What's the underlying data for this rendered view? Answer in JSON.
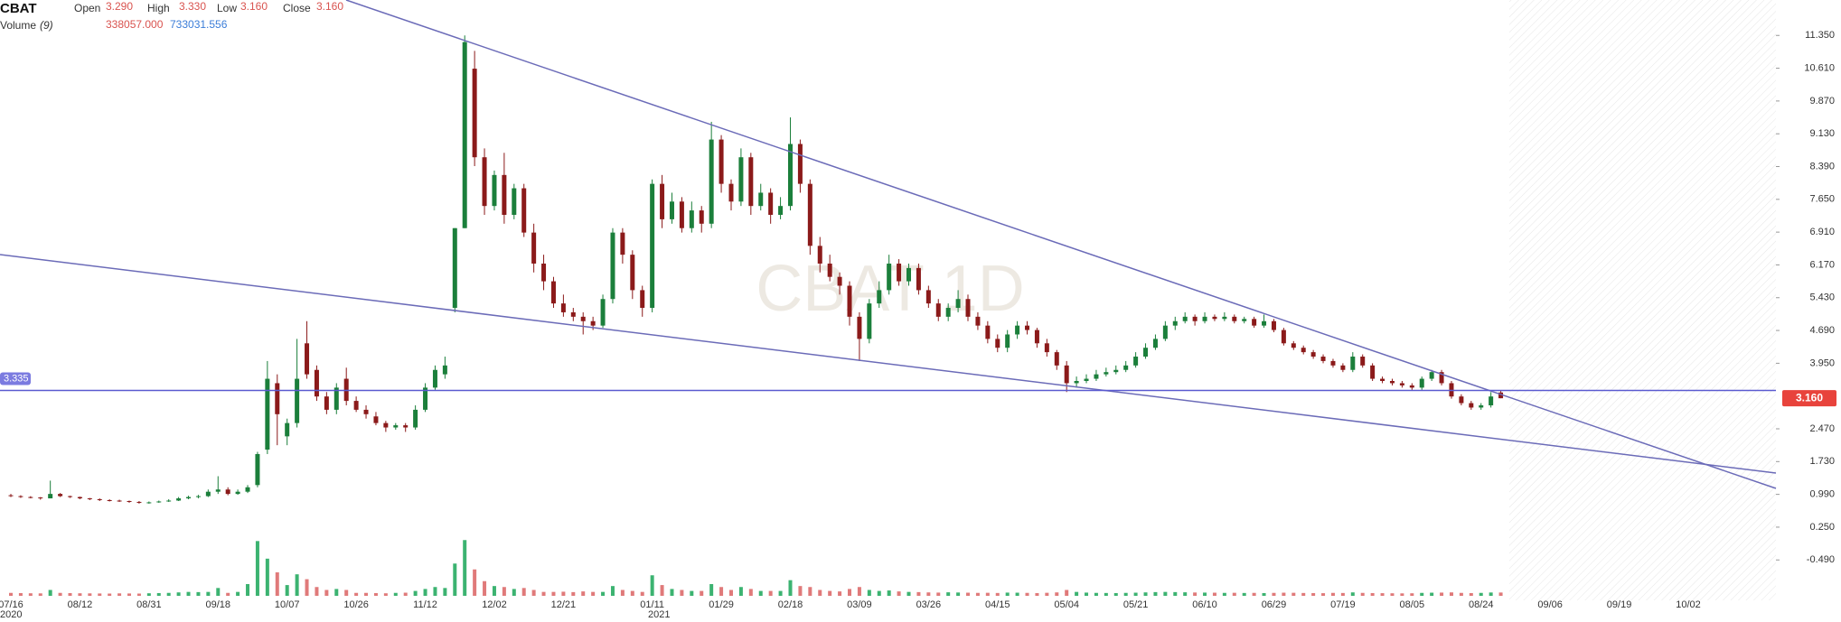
{
  "chart_data": {
    "type": "candlestick",
    "info": {
      "symbol": "CBAT",
      "fields": [
        {
          "name": "Open",
          "value": "3.290"
        },
        {
          "name": "High",
          "value": "3.330"
        },
        {
          "name": "Low",
          "value": "3.160"
        },
        {
          "name": "Close",
          "value": "3.160"
        }
      ],
      "volume_label": "Volume",
      "volume_period": "(9)",
      "volume_values": [
        "338057.000",
        "733031.556"
      ]
    },
    "watermark": "CBAT 1D",
    "years": [
      "2020",
      "2021"
    ],
    "categories": [
      "07/16",
      null,
      null,
      null,
      null,
      null,
      null,
      "08/12",
      null,
      null,
      null,
      null,
      null,
      null,
      "08/31",
      null,
      null,
      null,
      null,
      null,
      null,
      "09/18",
      null,
      null,
      null,
      null,
      null,
      null,
      "10/07",
      null,
      null,
      null,
      null,
      null,
      null,
      "10/26",
      null,
      null,
      null,
      null,
      null,
      null,
      "11/12",
      null,
      null,
      null,
      null,
      null,
      null,
      "12/02",
      null,
      null,
      null,
      null,
      null,
      null,
      "12/21",
      null,
      null,
      null,
      null,
      null,
      null,
      null,
      null,
      "01/11",
      null,
      null,
      null,
      null,
      null,
      null,
      "01/29",
      null,
      null,
      null,
      null,
      null,
      null,
      "02/18",
      null,
      null,
      null,
      null,
      null,
      null,
      "03/09",
      null,
      null,
      null,
      null,
      null,
      null,
      "03/26",
      null,
      null,
      null,
      null,
      null,
      null,
      "04/15",
      null,
      null,
      null,
      null,
      null,
      null,
      "05/04",
      null,
      null,
      null,
      null,
      null,
      null,
      "05/21",
      null,
      null,
      null,
      null,
      null,
      null,
      "06/10",
      null,
      null,
      null,
      null,
      null,
      null,
      "06/29",
      null,
      null,
      null,
      null,
      null,
      null,
      "07/19",
      null,
      null,
      null,
      null,
      null,
      null,
      "08/05",
      null,
      null,
      null,
      null,
      null,
      null,
      "08/24",
      null,
      null,
      null,
      null,
      null,
      null,
      "09/06",
      null,
      null,
      null,
      null,
      null,
      null,
      "09/19",
      null,
      null,
      null,
      null,
      null,
      null,
      "10/02"
    ],
    "ohlc": [
      [
        0.97,
        1.0,
        0.93,
        0.95
      ],
      [
        0.95,
        0.97,
        0.91,
        0.93
      ],
      [
        0.93,
        0.95,
        0.9,
        0.92
      ],
      [
        0.92,
        0.93,
        0.87,
        0.9
      ],
      [
        0.9,
        1.3,
        0.9,
        1.0
      ],
      [
        1.0,
        1.02,
        0.93,
        0.95
      ],
      [
        0.95,
        0.96,
        0.91,
        0.93
      ],
      [
        0.93,
        0.94,
        0.88,
        0.9
      ],
      [
        0.9,
        0.91,
        0.86,
        0.88
      ],
      [
        0.88,
        0.9,
        0.84,
        0.86
      ],
      [
        0.86,
        0.88,
        0.83,
        0.85
      ],
      [
        0.85,
        0.87,
        0.82,
        0.84
      ],
      [
        0.84,
        0.85,
        0.8,
        0.82
      ],
      [
        0.82,
        0.84,
        0.78,
        0.8
      ],
      [
        0.8,
        0.83,
        0.78,
        0.81
      ],
      [
        0.81,
        0.85,
        0.8,
        0.83
      ],
      [
        0.83,
        0.88,
        0.82,
        0.85
      ],
      [
        0.85,
        0.93,
        0.84,
        0.9
      ],
      [
        0.9,
        0.96,
        0.88,
        0.93
      ],
      [
        0.93,
        0.98,
        0.9,
        0.95
      ],
      [
        0.95,
        1.1,
        0.93,
        1.05
      ],
      [
        1.05,
        1.4,
        1.0,
        1.1
      ],
      [
        1.1,
        1.15,
        0.97,
        1.0
      ],
      [
        1.0,
        1.1,
        0.98,
        1.05
      ],
      [
        1.05,
        1.2,
        1.02,
        1.15
      ],
      [
        1.2,
        1.95,
        1.15,
        1.9
      ],
      [
        2.0,
        4.0,
        1.9,
        3.6
      ],
      [
        3.5,
        3.7,
        2.1,
        2.8
      ],
      [
        2.3,
        2.7,
        2.1,
        2.6
      ],
      [
        2.6,
        4.5,
        2.5,
        3.6
      ],
      [
        4.4,
        4.9,
        3.6,
        3.7
      ],
      [
        3.8,
        3.9,
        3.1,
        3.2
      ],
      [
        3.2,
        3.3,
        2.8,
        2.9
      ],
      [
        2.9,
        3.5,
        2.8,
        3.4
      ],
      [
        3.6,
        3.85,
        3.0,
        3.1
      ],
      [
        3.1,
        3.2,
        2.85,
        2.9
      ],
      [
        2.9,
        3.0,
        2.7,
        2.8
      ],
      [
        2.75,
        2.85,
        2.55,
        2.6
      ],
      [
        2.6,
        2.65,
        2.4,
        2.5
      ],
      [
        2.5,
        2.6,
        2.45,
        2.55
      ],
      [
        2.55,
        2.6,
        2.4,
        2.5
      ],
      [
        2.5,
        3.0,
        2.45,
        2.9
      ],
      [
        2.9,
        3.5,
        2.85,
        3.4
      ],
      [
        3.4,
        3.9,
        3.35,
        3.8
      ],
      [
        3.7,
        4.1,
        3.6,
        3.9
      ],
      [
        5.2,
        7.0,
        5.1,
        7.0
      ],
      [
        7.0,
        11.35,
        7.0,
        11.2
      ],
      [
        10.6,
        11.0,
        8.4,
        8.6
      ],
      [
        8.6,
        8.8,
        7.3,
        7.5
      ],
      [
        7.5,
        8.3,
        7.4,
        8.2
      ],
      [
        8.2,
        8.7,
        7.1,
        7.3
      ],
      [
        7.3,
        8.0,
        7.2,
        7.9
      ],
      [
        7.9,
        8.0,
        6.8,
        6.9
      ],
      [
        6.9,
        7.1,
        6.0,
        6.2
      ],
      [
        6.2,
        6.4,
        5.6,
        5.8
      ],
      [
        5.8,
        5.9,
        5.2,
        5.3
      ],
      [
        5.3,
        5.5,
        5.0,
        5.1
      ],
      [
        5.1,
        5.2,
        4.9,
        5.0
      ],
      [
        5.0,
        5.1,
        4.6,
        4.9
      ],
      [
        4.9,
        5.0,
        4.7,
        4.8
      ],
      [
        4.8,
        5.5,
        4.75,
        5.4
      ],
      [
        5.4,
        7.0,
        5.3,
        6.9
      ],
      [
        6.9,
        7.0,
        6.2,
        6.4
      ],
      [
        6.4,
        6.5,
        5.4,
        5.6
      ],
      [
        5.6,
        5.7,
        5.0,
        5.2
      ],
      [
        5.2,
        8.1,
        5.1,
        8.0
      ],
      [
        8.0,
        8.2,
        7.0,
        7.2
      ],
      [
        7.2,
        7.8,
        7.1,
        7.6
      ],
      [
        7.6,
        7.7,
        6.9,
        7.0
      ],
      [
        7.0,
        7.6,
        6.9,
        7.4
      ],
      [
        7.4,
        7.5,
        6.9,
        7.1
      ],
      [
        7.1,
        9.4,
        7.0,
        9.0
      ],
      [
        9.0,
        9.1,
        7.8,
        8.0
      ],
      [
        8.0,
        8.1,
        7.4,
        7.6
      ],
      [
        7.6,
        8.8,
        7.5,
        8.6
      ],
      [
        8.6,
        8.7,
        7.3,
        7.5
      ],
      [
        7.5,
        8.0,
        7.4,
        7.8
      ],
      [
        7.8,
        7.9,
        7.1,
        7.3
      ],
      [
        7.3,
        7.7,
        7.2,
        7.5
      ],
      [
        7.5,
        9.5,
        7.4,
        8.9
      ],
      [
        8.9,
        9.0,
        7.8,
        8.0
      ],
      [
        8.0,
        8.1,
        6.4,
        6.6
      ],
      [
        6.6,
        6.8,
        6.0,
        6.2
      ],
      [
        6.2,
        6.4,
        5.8,
        5.9
      ],
      [
        5.9,
        6.0,
        5.5,
        5.7
      ],
      [
        5.7,
        5.8,
        4.8,
        5.0
      ],
      [
        5.0,
        5.1,
        4.0,
        4.5
      ],
      [
        4.5,
        5.4,
        4.4,
        5.3
      ],
      [
        5.3,
        5.8,
        5.2,
        5.6
      ],
      [
        5.6,
        6.4,
        5.5,
        6.2
      ],
      [
        6.2,
        6.3,
        5.7,
        5.8
      ],
      [
        5.8,
        6.2,
        5.7,
        6.1
      ],
      [
        6.1,
        6.2,
        5.5,
        5.6
      ],
      [
        5.6,
        5.7,
        5.2,
        5.3
      ],
      [
        5.3,
        5.4,
        4.9,
        5.0
      ],
      [
        5.0,
        5.3,
        4.9,
        5.2
      ],
      [
        5.2,
        5.6,
        5.1,
        5.4
      ],
      [
        5.4,
        5.5,
        4.9,
        5.0
      ],
      [
        5.0,
        5.1,
        4.7,
        4.8
      ],
      [
        4.8,
        4.9,
        4.4,
        4.5
      ],
      [
        4.5,
        4.6,
        4.2,
        4.3
      ],
      [
        4.3,
        4.7,
        4.2,
        4.6
      ],
      [
        4.6,
        4.9,
        4.5,
        4.8
      ],
      [
        4.8,
        4.9,
        4.6,
        4.7
      ],
      [
        4.7,
        4.75,
        4.3,
        4.4
      ],
      [
        4.4,
        4.5,
        4.1,
        4.2
      ],
      [
        4.2,
        4.25,
        3.8,
        3.9
      ],
      [
        3.9,
        4.0,
        3.3,
        3.5
      ],
      [
        3.5,
        3.65,
        3.4,
        3.55
      ],
      [
        3.55,
        3.7,
        3.5,
        3.6
      ],
      [
        3.6,
        3.8,
        3.55,
        3.7
      ],
      [
        3.7,
        3.85,
        3.65,
        3.75
      ],
      [
        3.75,
        3.9,
        3.7,
        3.8
      ],
      [
        3.8,
        4.0,
        3.75,
        3.9
      ],
      [
        3.9,
        4.2,
        3.85,
        4.1
      ],
      [
        4.1,
        4.4,
        4.05,
        4.3
      ],
      [
        4.3,
        4.6,
        4.25,
        4.5
      ],
      [
        4.5,
        4.9,
        4.45,
        4.8
      ],
      [
        4.8,
        5.0,
        4.7,
        4.9
      ],
      [
        4.9,
        5.1,
        4.85,
        5.0
      ],
      [
        5.0,
        5.05,
        4.8,
        4.9
      ],
      [
        4.9,
        5.1,
        4.85,
        5.0
      ],
      [
        5.0,
        5.05,
        4.9,
        4.95
      ],
      [
        4.95,
        5.1,
        4.9,
        5.0
      ],
      [
        5.0,
        5.05,
        4.85,
        4.9
      ],
      [
        4.9,
        5.0,
        4.85,
        4.95
      ],
      [
        4.95,
        5.0,
        4.75,
        4.8
      ],
      [
        4.8,
        5.05,
        4.75,
        4.9
      ],
      [
        4.9,
        4.95,
        4.65,
        4.7
      ],
      [
        4.7,
        4.75,
        4.35,
        4.4
      ],
      [
        4.4,
        4.45,
        4.25,
        4.3
      ],
      [
        4.3,
        4.35,
        4.15,
        4.2
      ],
      [
        4.2,
        4.25,
        4.05,
        4.1
      ],
      [
        4.1,
        4.15,
        3.95,
        4.0
      ],
      [
        4.0,
        4.05,
        3.85,
        3.9
      ],
      [
        3.9,
        3.95,
        3.75,
        3.8
      ],
      [
        3.8,
        4.2,
        3.75,
        4.1
      ],
      [
        4.1,
        4.15,
        3.85,
        3.9
      ],
      [
        3.9,
        3.95,
        3.55,
        3.6
      ],
      [
        3.6,
        3.65,
        3.5,
        3.55
      ],
      [
        3.55,
        3.6,
        3.45,
        3.5
      ],
      [
        3.5,
        3.55,
        3.4,
        3.45
      ],
      [
        3.45,
        3.5,
        3.35,
        3.4
      ],
      [
        3.4,
        3.65,
        3.35,
        3.6
      ],
      [
        3.6,
        3.8,
        3.55,
        3.75
      ],
      [
        3.75,
        3.8,
        3.45,
        3.5
      ],
      [
        3.5,
        3.55,
        3.15,
        3.2
      ],
      [
        3.2,
        3.25,
        3.0,
        3.05
      ],
      [
        3.05,
        3.1,
        2.9,
        2.95
      ],
      [
        2.95,
        3.05,
        2.9,
        3.0
      ],
      [
        3.0,
        3.3,
        2.95,
        3.2
      ],
      [
        3.29,
        3.33,
        3.16,
        3.16
      ],
      null,
      null,
      null,
      null,
      null,
      null,
      null,
      null,
      null,
      null,
      null,
      null,
      null,
      null,
      null,
      null,
      null,
      null,
      null
    ],
    "volume": [
      300000,
      280000,
      260000,
      250000,
      600000,
      300000,
      280000,
      260000,
      250000,
      240000,
      230000,
      250000,
      240000,
      230000,
      260000,
      280000,
      300000,
      350000,
      400000,
      380000,
      400000,
      800000,
      300000,
      400000,
      1200000,
      5600000,
      3800000,
      2400000,
      1100000,
      2200000,
      1700000,
      900000,
      600000,
      700000,
      600000,
      300000,
      300000,
      280000,
      260000,
      300000,
      320000,
      500000,
      700000,
      900000,
      800000,
      3300000,
      5700000,
      2700000,
      1500000,
      1000000,
      900000,
      700000,
      800000,
      600000,
      400000,
      400000,
      420000,
      380000,
      450000,
      400000,
      400000,
      1000000,
      600000,
      500000,
      400000,
      2100000,
      1100000,
      700000,
      600000,
      500000,
      500000,
      1200000,
      900000,
      600000,
      900000,
      700000,
      500000,
      500000,
      500000,
      1600000,
      1000000,
      900000,
      600000,
      500000,
      450000,
      700000,
      900000,
      600000,
      500000,
      550000,
      450000,
      400000,
      380000,
      350000,
      330000,
      360000,
      340000,
      320000,
      300000,
      310000,
      290000,
      330000,
      320000,
      300000,
      280000,
      310000,
      350000,
      600000,
      400000,
      330000,
      300000,
      290000,
      280000,
      300000,
      320000,
      350000,
      380000,
      400000,
      380000,
      360000,
      340000,
      330000,
      320000,
      300000,
      310000,
      290000,
      300000,
      280000,
      300000,
      320000,
      310000,
      290000,
      280000,
      270000,
      300000,
      290000,
      350000,
      300000,
      280000,
      270000,
      260000,
      250000,
      260000,
      300000,
      320000,
      330000,
      350000,
      300000,
      280000,
      300000,
      340000,
      338057,
      null,
      null,
      null,
      null,
      null,
      null,
      null,
      null,
      null,
      null,
      null,
      null,
      null,
      null,
      null,
      null,
      null,
      null,
      null
    ],
    "volume_lim": [
      0,
      6000000
    ],
    "up_color": "#1b7f3b",
    "down_color": "#8b1a1a",
    "volume_up_color": "#3cb371",
    "volume_down_color": "#e07a7a",
    "ylim": [
      -1.3,
      12.15
    ],
    "yticks": [
      {
        "value": 11.35,
        "label": "11.350"
      },
      {
        "value": 10.61,
        "label": "10.610"
      },
      {
        "value": 9.87,
        "label": "9.870"
      },
      {
        "value": 9.13,
        "label": "9.130"
      },
      {
        "value": 8.39,
        "label": "8.390"
      },
      {
        "value": 7.65,
        "label": "7.650"
      },
      {
        "value": 6.91,
        "label": "6.910"
      },
      {
        "value": 6.17,
        "label": "6.170"
      },
      {
        "value": 5.43,
        "label": "5.430"
      },
      {
        "value": 4.69,
        "label": "4.690"
      },
      {
        "value": 3.95,
        "label": "3.950"
      },
      {
        "value": 2.47,
        "label": "2.470"
      },
      {
        "value": 1.73,
        "label": "1.730"
      },
      {
        "value": 0.99,
        "label": "0.990"
      },
      {
        "value": 0.25,
        "label": "0.250"
      },
      {
        "value": -0.49,
        "label": "-0.490"
      }
    ],
    "hline": 3.335,
    "last_price": {
      "value": 3.16,
      "label": "3.160"
    },
    "grid": false
  }
}
